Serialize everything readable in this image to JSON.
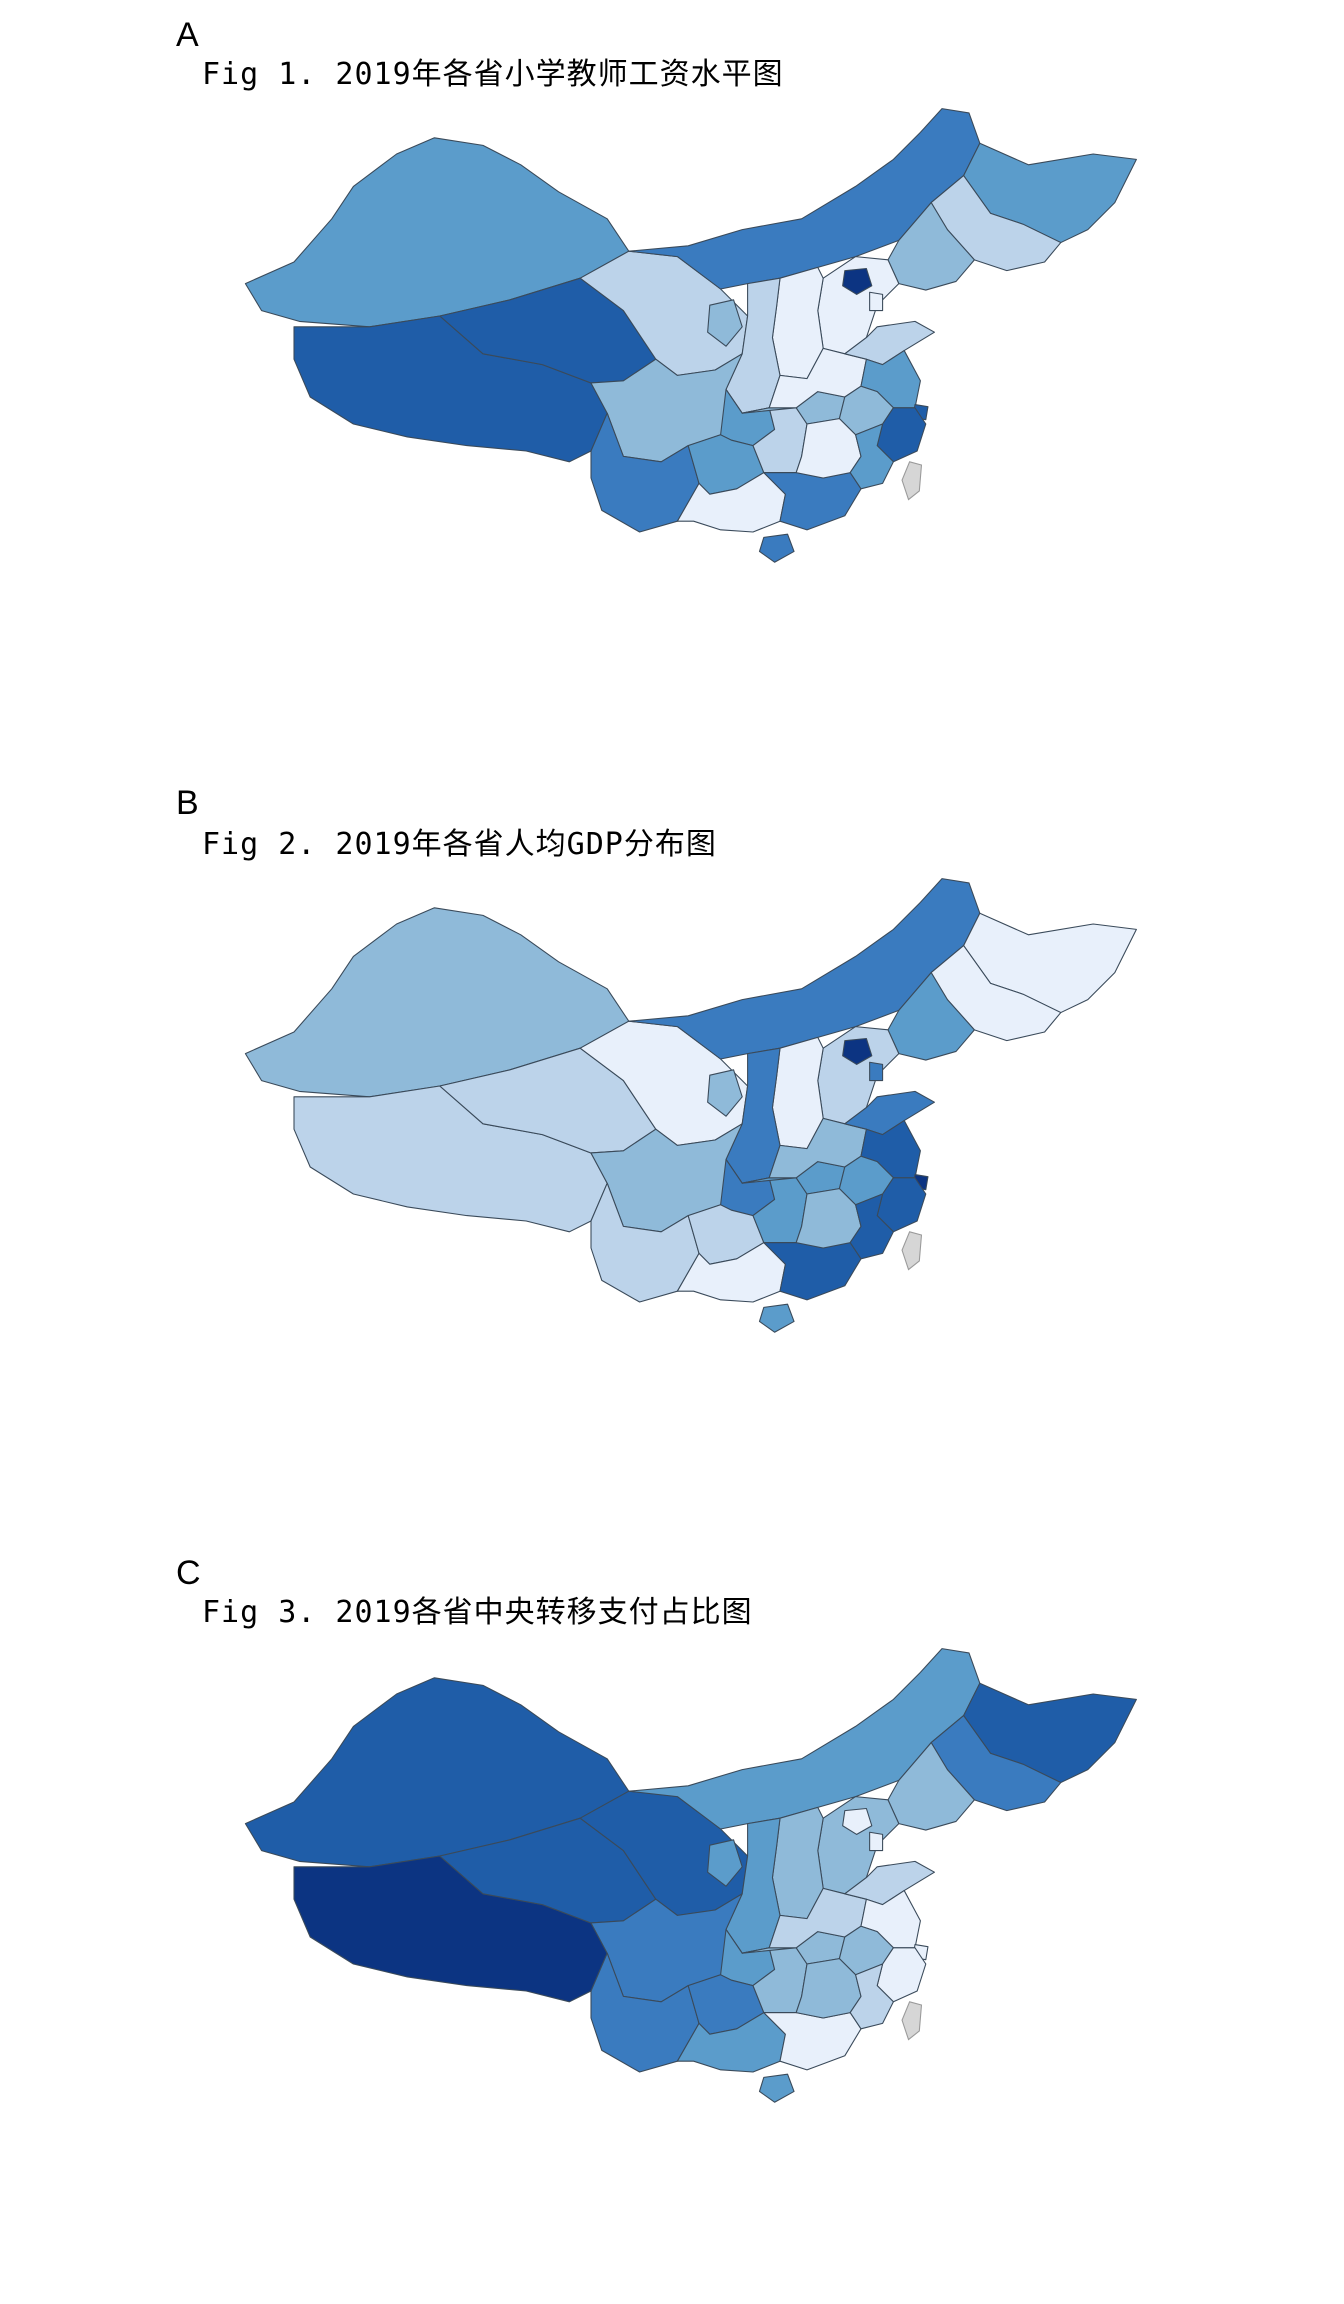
{
  "panels": [
    {
      "letter": "A",
      "title": "Fig 1. 2019年各省小学教师工资水平图"
    },
    {
      "letter": "B",
      "title": "Fig 2. 2019年各省人均GDP分布图"
    },
    {
      "letter": "C",
      "title": "Fig 3. 2019各省中央转移支付占比图"
    }
  ],
  "colors": {
    "c1": "#e8f0fb",
    "c2": "#bcd3ea",
    "c3": "#8fbad9",
    "c4": "#5b9ccb",
    "c5": "#3a7bbf",
    "c6": "#1f5da8",
    "c7": "#0c3482",
    "taiwan": "#d6d6d6"
  },
  "maps": [
    {
      "xinjiang": 4,
      "tibet": 6,
      "qinghai": 6,
      "gansu": 2,
      "innermongolia": 5,
      "heilongjiang": 4,
      "jilin": 2,
      "liaoning": 3,
      "hebei": 1,
      "beijing": 7,
      "tianjin": 1,
      "shanxi": 1,
      "shaanxi": 2,
      "ningxia": 3,
      "sichuan": 3,
      "chongqing": 4,
      "yunnan": 5,
      "guizhou": 4,
      "guangxi": 1,
      "guangdong": 5,
      "hunan": 2,
      "hubei": 3,
      "henan": 1,
      "shandong": 2,
      "jiangsu": 4,
      "anhui": 3,
      "shanghai": 6,
      "zhejiang": 6,
      "jiangxi": 1,
      "fujian": 4,
      "hainan": 5
    },
    {
      "xinjiang": 3,
      "tibet": 2,
      "qinghai": 2,
      "gansu": 1,
      "innermongolia": 5,
      "heilongjiang": 1,
      "jilin": 1,
      "liaoning": 4,
      "hebei": 2,
      "beijing": 7,
      "tianjin": 5,
      "shanxi": 1,
      "shaanxi": 5,
      "ningxia": 3,
      "sichuan": 3,
      "chongqing": 5,
      "yunnan": 2,
      "guizhou": 2,
      "guangxi": 1,
      "guangdong": 6,
      "hunan": 4,
      "hubei": 4,
      "henan": 3,
      "shandong": 5,
      "jiangsu": 6,
      "anhui": 4,
      "shanghai": 7,
      "zhejiang": 6,
      "jiangxi": 3,
      "fujian": 6,
      "hainan": 4
    },
    {
      "xinjiang": 6,
      "tibet": 7,
      "qinghai": 6,
      "gansu": 6,
      "innermongolia": 4,
      "heilongjiang": 6,
      "jilin": 5,
      "liaoning": 3,
      "hebei": 3,
      "beijing": 1,
      "tianjin": 1,
      "shanxi": 3,
      "shaanxi": 4,
      "ningxia": 4,
      "sichuan": 5,
      "chongqing": 4,
      "yunnan": 5,
      "guizhou": 5,
      "guangxi": 4,
      "guangdong": 1,
      "hunan": 3,
      "hubei": 3,
      "henan": 2,
      "shandong": 2,
      "jiangsu": 1,
      "anhui": 3,
      "shanghai": 1,
      "zhejiang": 1,
      "jiangxi": 3,
      "fujian": 2,
      "hainan": 4
    }
  ]
}
